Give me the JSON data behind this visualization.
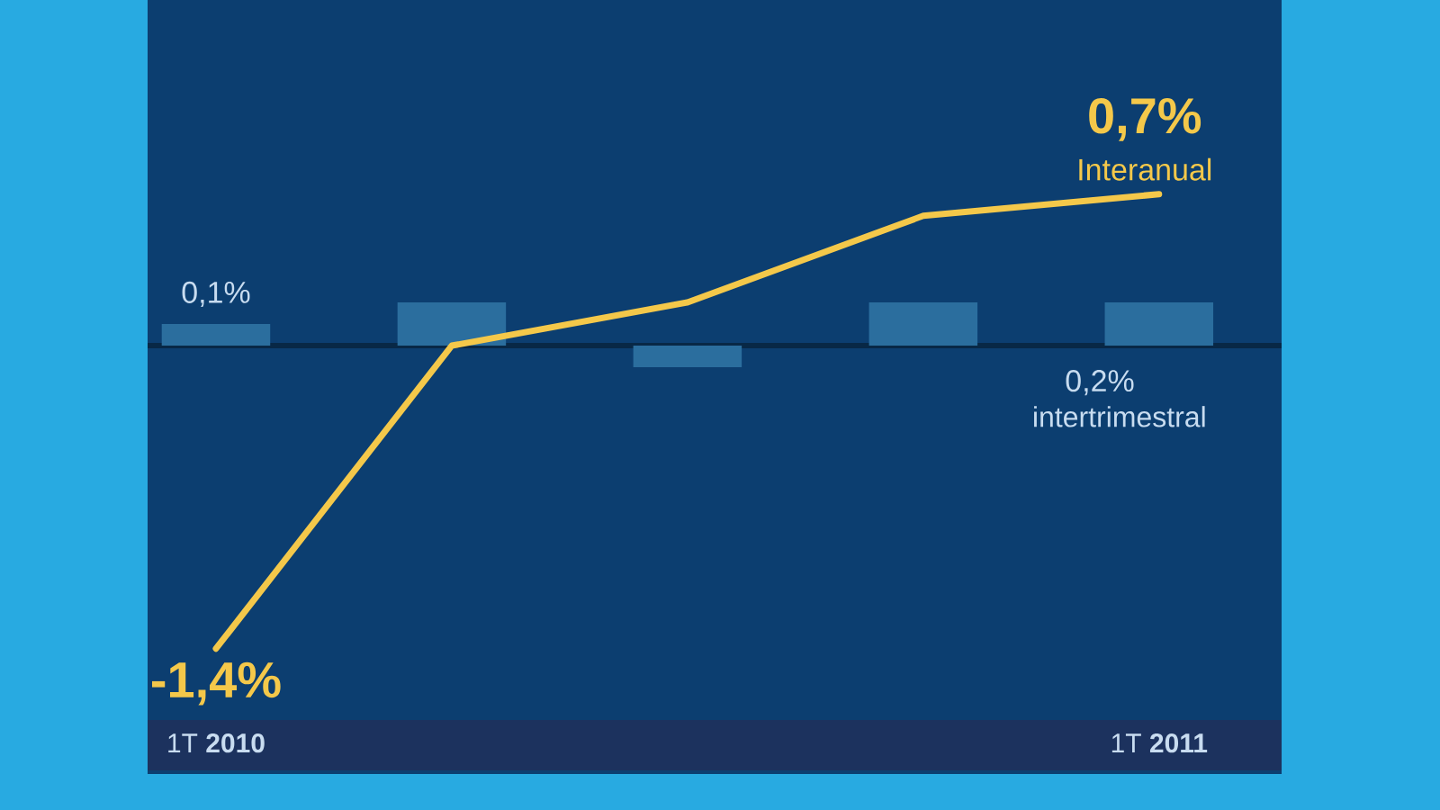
{
  "chart_data": {
    "type": "line",
    "categories": [
      "1T **2010**",
      null,
      null,
      null,
      "1T **2011**"
    ],
    "tick_labels": "x",
    "grid": false,
    "series": [
      {
        "name": "intertrimestral",
        "type": "bar",
        "color": "#2b6e9e",
        "values": [
          0.1,
          0.2,
          -0.1,
          0.2,
          0.2
        ],
        "value_labels": [
          "0,1%",
          null,
          null,
          null,
          "0,2%"
        ]
      },
      {
        "name": "Interanual",
        "color": "#f4c84a",
        "values": [
          -1.4,
          0.0,
          0.2,
          0.6,
          0.7
        ],
        "value_labels": [
          "-1,4%",
          null,
          null,
          null,
          "0,7%"
        ]
      }
    ]
  }
}
